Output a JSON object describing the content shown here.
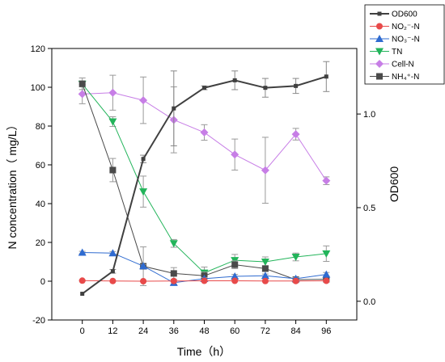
{
  "chart_data": {
    "type": "line",
    "xlabel": "Time（h）",
    "ylabel_left": "N concentration（ mg/L）",
    "ylabel_right": "OD600",
    "x": [
      0,
      12,
      24,
      36,
      48,
      60,
      72,
      84,
      96
    ],
    "x_ticks": [
      "0",
      "12",
      "24",
      "36",
      "48",
      "60",
      "72",
      "84",
      "96"
    ],
    "xlim": [
      -12,
      108
    ],
    "ylim_left": [
      -20,
      120
    ],
    "ylim_right": [
      -0.1,
      1.35
    ],
    "yticks_left": [
      "-20",
      "0",
      "20",
      "40",
      "60",
      "80",
      "100",
      "120"
    ],
    "yticks_right": [
      "0.0",
      "0.5",
      "1.0"
    ],
    "grid": false,
    "legend_position": "top-right, outside plot",
    "series": [
      {
        "name": "OD600",
        "axis": "right",
        "color": "#404040",
        "marker": "square-small",
        "values": [
          0.04,
          0.16,
          0.76,
          1.03,
          1.14,
          1.18,
          1.14,
          1.15,
          1.2
        ],
        "errors": [
          0,
          0.01,
          0.02,
          0.2,
          0.01,
          0.05,
          0.05,
          0.04,
          0.08
        ]
      },
      {
        "name": "NO₂⁻-N",
        "axis": "left",
        "color": "#e84a4a",
        "marker": "circle",
        "values": [
          0.3,
          0.1,
          0.0,
          0.1,
          0.2,
          0.2,
          0.1,
          0.1,
          0.2
        ],
        "errors": [
          0.3,
          0.2,
          0.2,
          0.2,
          0.2,
          0.2,
          0.2,
          0.2,
          0.2
        ]
      },
      {
        "name": "NO₃⁻-N",
        "axis": "left",
        "color": "#2f6bd0",
        "marker": "triangle-up",
        "values": [
          14.8,
          14.5,
          7.8,
          -0.8,
          1.3,
          2.5,
          2.8,
          1.3,
          3.5
        ],
        "errors": [
          0.6,
          0.8,
          0.7,
          0.8,
          0.6,
          1.0,
          0.9,
          0.6,
          1.0
        ]
      },
      {
        "name": "TN",
        "axis": "left",
        "color": "#22b45a",
        "marker": "triangle-down",
        "values": [
          101.7,
          82.3,
          46.2,
          19.5,
          4.3,
          10.8,
          10.0,
          12.5,
          14.2
        ],
        "errors": [
          1.5,
          2.5,
          8.0,
          2.0,
          3.0,
          3.0,
          2.5,
          2.0,
          4.0
        ]
      },
      {
        "name": "Cell-N",
        "axis": "left",
        "color": "#c77ee6",
        "marker": "diamond",
        "values": [
          96.5,
          97.2,
          93.3,
          83.2,
          76.7,
          65.3,
          57.2,
          75.8,
          51.8
        ],
        "errors": [
          5,
          9,
          12,
          17,
          4,
          8,
          17,
          3,
          2
        ]
      },
      {
        "name": "NH₄⁺-N",
        "axis": "left",
        "color": "#4a4a4a",
        "marker": "square",
        "values": [
          101.8,
          57.3,
          7.7,
          4.0,
          2.8,
          8.5,
          6.5,
          0.8,
          1.0
        ],
        "errors": [
          3,
          6,
          10,
          3,
          2,
          2,
          1.5,
          0.5,
          0.5
        ]
      }
    ]
  }
}
